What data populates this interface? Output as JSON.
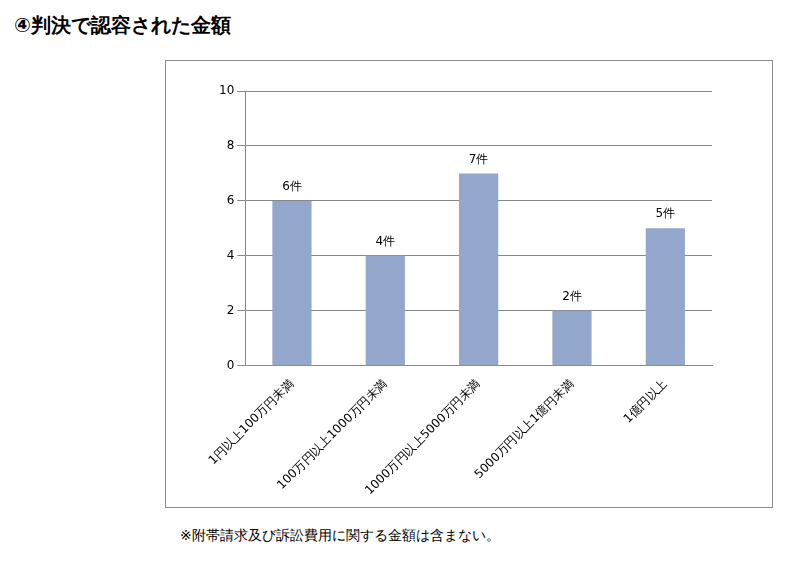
{
  "chart_data": {
    "type": "bar",
    "title": "④判決で認容された金額",
    "categories": [
      "1円以上100万円未満",
      "100万円以上1000万円未満",
      "1000万円以上5000万円未満",
      "5000万円以上1億円未満",
      "1億円以上"
    ],
    "values": [
      6,
      4,
      7,
      2,
      5
    ],
    "value_labels": [
      "6件",
      "4件",
      "7件",
      "2件",
      "5件"
    ],
    "data_labels": true,
    "color": "#93a7cc",
    "ylim": [
      0,
      10
    ],
    "yticks": [
      0,
      2,
      4,
      6,
      8,
      10
    ],
    "grid": true,
    "annotations": [
      "※附帯請求及び訴訟費用に関する金額は含まない。"
    ]
  }
}
